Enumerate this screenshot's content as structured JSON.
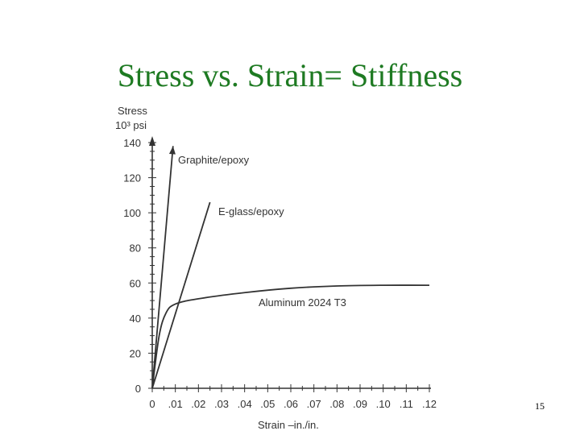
{
  "slide": {
    "title": "Stress vs. Strain= Stiffness",
    "page_number": "15"
  },
  "chart_data": {
    "type": "line",
    "ylabel_line1": "Stress",
    "ylabel_line2": "10³ psi",
    "xlabel": "Strain –in./in.",
    "xlim": [
      0,
      0.12
    ],
    "ylim": [
      0,
      140
    ],
    "x_ticks": [
      0,
      0.01,
      0.02,
      0.03,
      0.04,
      0.05,
      0.06,
      0.07,
      0.08,
      0.09,
      0.1,
      0.11,
      0.12
    ],
    "x_tick_labels": [
      "0",
      ".01",
      ".02",
      ".03",
      ".04",
      ".05",
      ".06",
      ".07",
      ".08",
      ".09",
      ".10",
      ".11",
      ".12"
    ],
    "y_ticks": [
      0,
      20,
      40,
      60,
      80,
      100,
      120,
      140
    ],
    "y_tick_labels": [
      "0",
      "20",
      "40",
      "60",
      "80",
      "100",
      "120",
      "140"
    ],
    "grid": false,
    "series": [
      {
        "name": "Graphite/epoxy",
        "points": [
          [
            0,
            0
          ],
          [
            0.009,
            138
          ]
        ],
        "arrow": true
      },
      {
        "name": "E-glass/epoxy",
        "points": [
          [
            0,
            0
          ],
          [
            0.025,
            106
          ]
        ]
      },
      {
        "name": "Aluminum 2024 T3",
        "points": [
          [
            0,
            0
          ],
          [
            0.003,
            30
          ],
          [
            0.006,
            43
          ],
          [
            0.01,
            48
          ],
          [
            0.02,
            51
          ],
          [
            0.04,
            54.5
          ],
          [
            0.06,
            57
          ],
          [
            0.08,
            58.3
          ],
          [
            0.1,
            58.7
          ],
          [
            0.12,
            58.7
          ]
        ]
      }
    ]
  },
  "colors": {
    "title": "#1e7a22",
    "line": "#333333",
    "text": "#333333"
  }
}
